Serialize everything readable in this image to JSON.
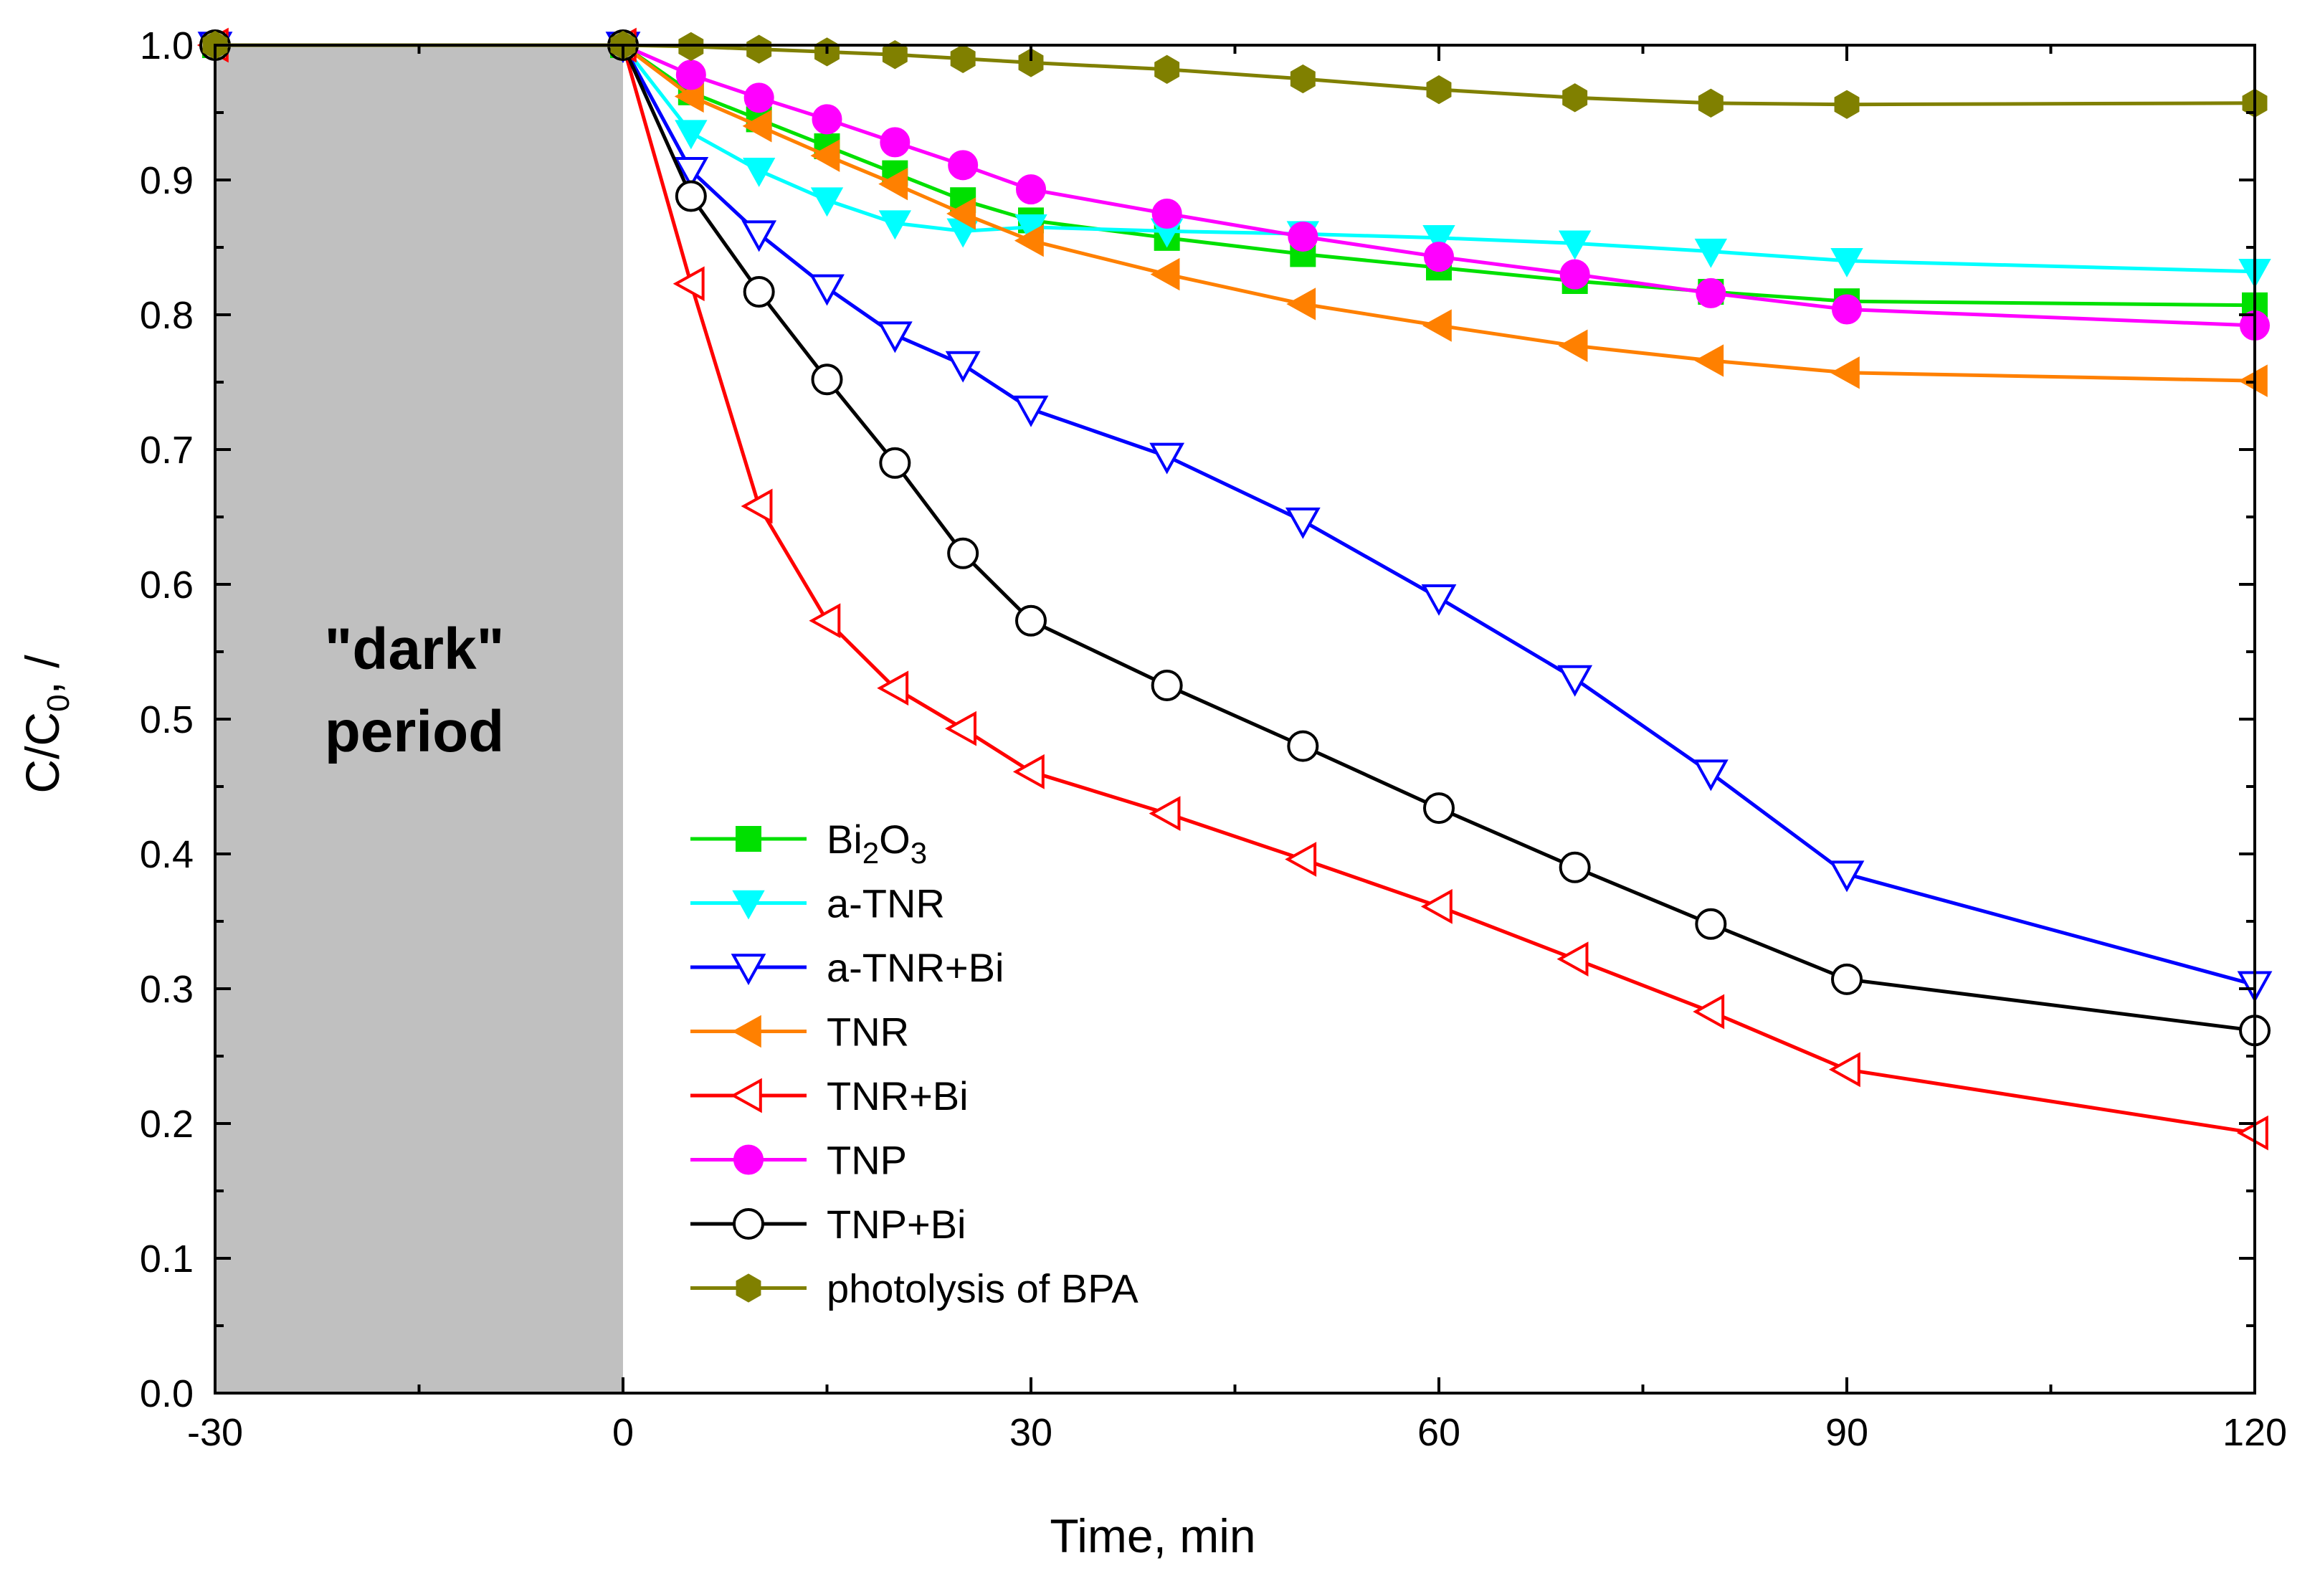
{
  "chart_data": {
    "type": "line",
    "xlabel": "Time, min",
    "ylabel_main": "C/C",
    "ylabel_sub": "0",
    "ylabel_tail": ", /",
    "xlim": [
      -30,
      120
    ],
    "ylim": [
      0.0,
      1.0
    ],
    "x_major_ticks": [
      -30,
      0,
      30,
      60,
      90,
      120
    ],
    "x_tick_labels": [
      "-30",
      "0",
      "30",
      "60",
      "90",
      "120"
    ],
    "y_major_ticks": [
      0.0,
      0.1,
      0.2,
      0.3,
      0.4,
      0.5,
      0.6,
      0.7,
      0.8,
      0.9,
      1.0
    ],
    "y_tick_labels": [
      "0.0",
      "0.1",
      "0.2",
      "0.3",
      "0.4",
      "0.5",
      "0.6",
      "0.7",
      "0.8",
      "0.9",
      "1.0"
    ],
    "grid": false,
    "legend_position": "bottom-center",
    "shaded_region": {
      "x_from": -30,
      "x_to": 0,
      "color": "#c0c0c0"
    },
    "annotation_line1": "\"dark\"",
    "annotation_line2": "period",
    "series": [
      {
        "name": "Bi2O3",
        "name_main": "Bi",
        "name_sub1": "2",
        "name_mid": "O",
        "name_sub2": "3",
        "color": "#00e000",
        "marker": "square",
        "filled": true,
        "x": [
          -30,
          0,
          5,
          10,
          15,
          20,
          25,
          30,
          40,
          50,
          60,
          70,
          80,
          90,
          120
        ],
        "y": [
          1.0,
          1.0,
          0.965,
          0.945,
          0.925,
          0.905,
          0.885,
          0.87,
          0.857,
          0.845,
          0.835,
          0.825,
          0.817,
          0.81,
          0.807
        ]
      },
      {
        "name": "a-TNR",
        "color": "#00ffff",
        "marker": "triangle-down",
        "filled": true,
        "x": [
          -30,
          0,
          5,
          10,
          15,
          20,
          25,
          30,
          40,
          50,
          60,
          70,
          80,
          90,
          120
        ],
        "y": [
          1.0,
          1.0,
          0.935,
          0.907,
          0.885,
          0.868,
          0.862,
          0.865,
          0.862,
          0.86,
          0.857,
          0.853,
          0.847,
          0.84,
          0.832
        ]
      },
      {
        "name": "a-TNR+Bi",
        "color": "#0000ff",
        "marker": "triangle-down",
        "filled": false,
        "x": [
          -30,
          0,
          5,
          10,
          15,
          20,
          25,
          30,
          40,
          50,
          60,
          70,
          80,
          90,
          120
        ],
        "y": [
          1.0,
          1.0,
          0.907,
          0.86,
          0.82,
          0.785,
          0.763,
          0.73,
          0.695,
          0.647,
          0.59,
          0.53,
          0.46,
          0.385,
          0.303
        ]
      },
      {
        "name": "TNR",
        "color": "#ff8000",
        "marker": "triangle-left",
        "filled": true,
        "x": [
          -30,
          0,
          5,
          10,
          15,
          20,
          25,
          30,
          40,
          50,
          60,
          70,
          80,
          90,
          120
        ],
        "y": [
          1.0,
          1.0,
          0.962,
          0.94,
          0.918,
          0.897,
          0.875,
          0.855,
          0.83,
          0.808,
          0.792,
          0.777,
          0.766,
          0.757,
          0.751
        ]
      },
      {
        "name": "TNR+Bi",
        "color": "#ff0000",
        "marker": "triangle-left",
        "filled": false,
        "x": [
          -30,
          0,
          5,
          10,
          15,
          20,
          25,
          30,
          40,
          50,
          60,
          70,
          80,
          90,
          120
        ],
        "y": [
          1.0,
          1.0,
          0.823,
          0.658,
          0.573,
          0.523,
          0.493,
          0.461,
          0.43,
          0.396,
          0.361,
          0.322,
          0.283,
          0.24,
          0.193
        ]
      },
      {
        "name": "TNP",
        "color": "#ff00ff",
        "marker": "circle",
        "filled": true,
        "x": [
          -30,
          0,
          5,
          10,
          15,
          20,
          25,
          30,
          40,
          50,
          60,
          70,
          80,
          90,
          120
        ],
        "y": [
          1.0,
          1.0,
          0.978,
          0.961,
          0.945,
          0.928,
          0.911,
          0.893,
          0.875,
          0.858,
          0.843,
          0.83,
          0.816,
          0.804,
          0.792
        ]
      },
      {
        "name": "TNP+Bi",
        "color": "#000000",
        "marker": "circle",
        "filled": false,
        "x": [
          -30,
          0,
          5,
          10,
          15,
          20,
          25,
          30,
          40,
          50,
          60,
          70,
          80,
          90,
          120
        ],
        "y": [
          1.0,
          1.0,
          0.888,
          0.817,
          0.752,
          0.69,
          0.623,
          0.573,
          0.525,
          0.48,
          0.434,
          0.39,
          0.348,
          0.307,
          0.269
        ]
      },
      {
        "name": "photolysis of BPA",
        "color": "#808000",
        "marker": "hexagon",
        "filled": true,
        "x": [
          -30,
          0,
          5,
          10,
          15,
          20,
          25,
          30,
          40,
          50,
          60,
          70,
          80,
          90,
          120
        ],
        "y": [
          1.0,
          1.0,
          0.999,
          0.997,
          0.995,
          0.993,
          0.99,
          0.987,
          0.982,
          0.975,
          0.967,
          0.961,
          0.957,
          0.956,
          0.957
        ]
      }
    ]
  }
}
